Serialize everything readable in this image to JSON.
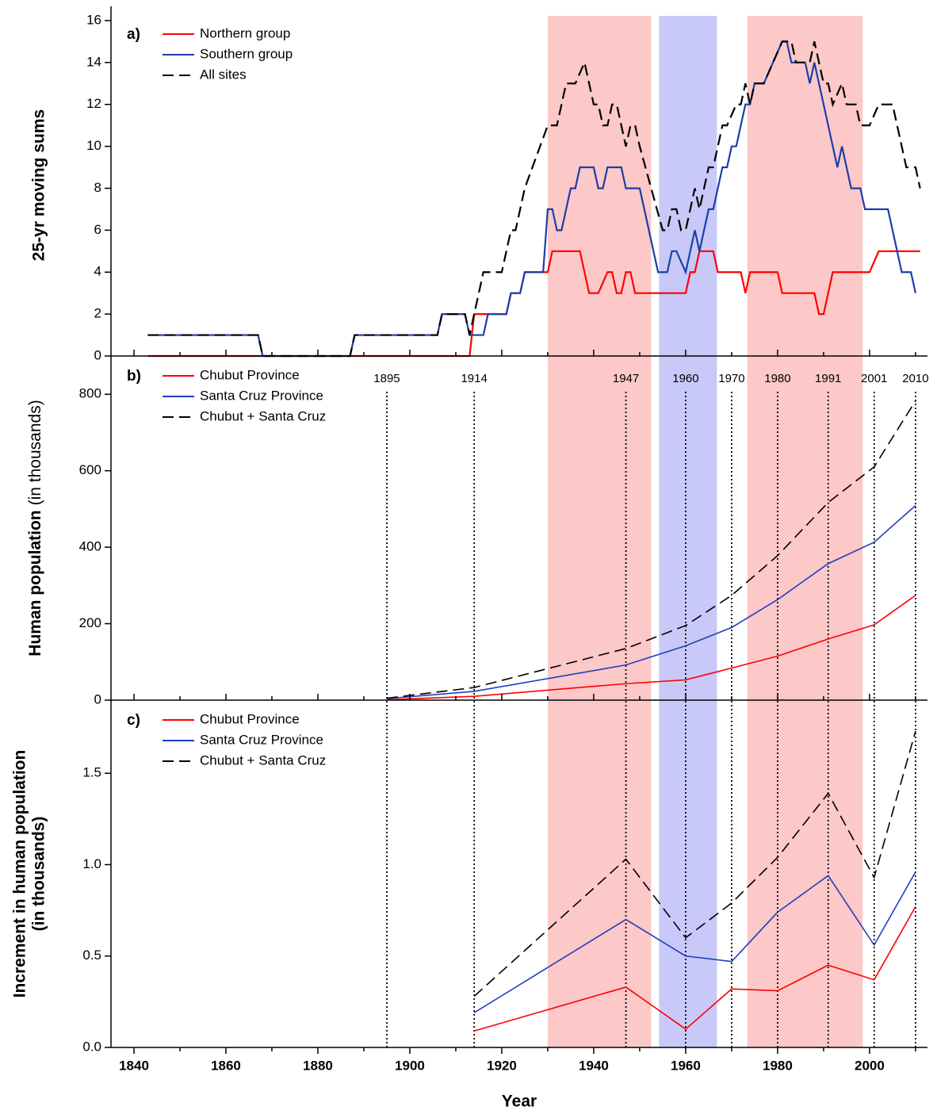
{
  "chart_data": [
    {
      "type": "line",
      "panel_label": "a)",
      "ylabel": "25-yr moving sums",
      "xlim": [
        1835,
        2012.6
      ],
      "ylim": [
        0,
        16.3
      ],
      "yticks": [
        0,
        2,
        4,
        6,
        8,
        10,
        12,
        14,
        16
      ],
      "legend": "upper left",
      "series": [
        {
          "name": "Northern group",
          "color": "#ff0000",
          "style": "solid",
          "x": [
            1843,
            1913,
            1914,
            1921,
            1922,
            1924,
            1925,
            1930,
            1931,
            1937,
            1939,
            1941,
            1943,
            1944,
            1945,
            1946,
            1947,
            1948,
            1949,
            1960,
            1961,
            1962,
            1963,
            1966,
            1967,
            1972,
            1973,
            1974,
            1980,
            1981,
            1988,
            1989,
            1990,
            1991,
            1992,
            2000,
            2002,
            2011
          ],
          "values": [
            0,
            0,
            2,
            2,
            3,
            3,
            4,
            4,
            5,
            5,
            3,
            3,
            4,
            4,
            3,
            3,
            4,
            4,
            3,
            3,
            4,
            4,
            5,
            5,
            4,
            4,
            3,
            4,
            4,
            3,
            3,
            2,
            2,
            3,
            4,
            4,
            5,
            5
          ]
        },
        {
          "name": "Southern group",
          "color": "#1a3fa8",
          "style": "solid",
          "x": [
            1843,
            1867,
            1868,
            1887,
            1888,
            1906,
            1907,
            1912,
            1913,
            1916,
            1917,
            1921,
            1922,
            1924,
            1925,
            1929,
            1930,
            1931,
            1932,
            1933,
            1935,
            1936,
            1937,
            1940,
            1941,
            1942,
            1943,
            1946,
            1947,
            1950,
            1954,
            1956,
            1957,
            1958,
            1960,
            1962,
            1963,
            1965,
            1966,
            1968,
            1969,
            1970,
            1971,
            1972,
            1973,
            1974,
            1975,
            1977,
            1979,
            1981,
            1982,
            1983,
            1986,
            1987,
            1988,
            1990,
            1993,
            1994,
            1995,
            1996,
            1998,
            1999,
            2004,
            2007,
            2009,
            2010
          ],
          "values": [
            1,
            1,
            0,
            0,
            1,
            1,
            2,
            2,
            1,
            1,
            2,
            2,
            3,
            3,
            4,
            4,
            7,
            7,
            6,
            6,
            8,
            8,
            9,
            9,
            8,
            8,
            9,
            9,
            8,
            8,
            4,
            4,
            5,
            5,
            4,
            6,
            5,
            7,
            7,
            9,
            9,
            10,
            10,
            11,
            12,
            12,
            13,
            13,
            14,
            15,
            15,
            14,
            14,
            13,
            14,
            12,
            9,
            10,
            9,
            8,
            8,
            7,
            7,
            4,
            4,
            3
          ]
        },
        {
          "name": "All sites",
          "color": "#000000",
          "style": "dashed",
          "x": [
            1843,
            1867,
            1868,
            1887,
            1888,
            1906,
            1907,
            1912,
            1913,
            1915,
            1916,
            1920,
            1922,
            1923,
            1925,
            1930,
            1932,
            1934,
            1936,
            1938,
            1940,
            1941,
            1942,
            1943,
            1944,
            1945,
            1946,
            1947,
            1948,
            1949,
            1950,
            1955,
            1956,
            1957,
            1958,
            1959,
            1960,
            1962,
            1963,
            1964,
            1965,
            1966,
            1968,
            1969,
            1971,
            1972,
            1973,
            1974,
            1975,
            1977,
            1979,
            1981,
            1983,
            1984,
            1987,
            1988,
            1989,
            1990,
            1991,
            1992,
            1994,
            1995,
            1997,
            1998,
            2000,
            2002,
            2005,
            2008,
            2010,
            2011
          ],
          "values": [
            1,
            1,
            0,
            0,
            1,
            1,
            2,
            2,
            1,
            3,
            4,
            4,
            6,
            6,
            8,
            11,
            11,
            13,
            13,
            14,
            12,
            12,
            11,
            11,
            12,
            12,
            11,
            10,
            11,
            11,
            10,
            6,
            6,
            7,
            7,
            6,
            6,
            8,
            7,
            8,
            9,
            9,
            11,
            11,
            12,
            12,
            13,
            12,
            13,
            13,
            14,
            15,
            15,
            14,
            14,
            15,
            14,
            13,
            13,
            12,
            13,
            12,
            12,
            11,
            11,
            12,
            12,
            9,
            9,
            8
          ]
        }
      ]
    },
    {
      "type": "line",
      "panel_label": "b)",
      "ylabel": "Human population",
      "ylabel_note": "(in thousands)",
      "xlim": [
        1835,
        2012.6
      ],
      "ylim": [
        0,
        900
      ],
      "yticks": [
        0,
        200,
        400,
        600,
        800
      ],
      "legend": "upper left",
      "x": [
        1895,
        1914,
        1947,
        1960,
        1970,
        1980,
        1991,
        2001,
        2010
      ],
      "series": [
        {
          "name": "Chubut Province",
          "color": "#ff0000",
          "style": "solid",
          "values": [
            1,
            10,
            43,
            53,
            84,
            115,
            160,
            197,
            274
          ]
        },
        {
          "name": "Santa Cruz Province",
          "color": "#1f3fbf",
          "style": "solid",
          "values": [
            4,
            23,
            92,
            142,
            190,
            263,
            357,
            413,
            509
          ]
        },
        {
          "name": "Chubut + Santa Cruz",
          "color": "#000000",
          "style": "dashed",
          "values": [
            5,
            33,
            135,
            195,
            274,
            378,
            517,
            610,
            783
          ]
        }
      ]
    },
    {
      "type": "line",
      "panel_label": "c)",
      "ylabel": "Increment in human population",
      "ylabel_note": "(in thousands)",
      "xlabel": "Year",
      "xlim": [
        1835,
        2012.6
      ],
      "ylim": [
        0,
        1.9
      ],
      "yticks": [
        {
          "value": 0,
          "label": "0.0"
        },
        {
          "value": 0.5,
          "label": "0.5"
        },
        {
          "value": 1,
          "label": "1.0"
        },
        {
          "value": 1.5,
          "label": "1.5"
        }
      ],
      "xticks": [
        1840,
        1860,
        1880,
        1900,
        1920,
        1940,
        1960,
        1980,
        2000
      ],
      "x_minor_ticks": [
        1850,
        1870,
        1890,
        1910,
        1930,
        1950,
        1970,
        1990,
        2010
      ],
      "legend": "upper left",
      "x": [
        1914,
        1947,
        1960,
        1970,
        1980,
        1991,
        2001,
        2010
      ],
      "series": [
        {
          "name": "Chubut Province",
          "color": "#ff0000",
          "style": "solid",
          "values": [
            0.09,
            0.33,
            0.1,
            0.32,
            0.31,
            0.45,
            0.37,
            0.77
          ]
        },
        {
          "name": "Santa Cruz Province",
          "color": "#1f3fbf",
          "style": "solid",
          "values": [
            0.19,
            0.7,
            0.5,
            0.47,
            0.74,
            0.94,
            0.56,
            0.96
          ]
        },
        {
          "name": "Chubut + Santa Cruz",
          "color": "#000000",
          "style": "dashed",
          "values": [
            0.28,
            1.03,
            0.6,
            0.79,
            1.04,
            1.39,
            0.93,
            1.73
          ]
        }
      ]
    }
  ],
  "shaded_periods": [
    {
      "start": 1930,
      "end": 1952.5,
      "color": "#fcc8c8"
    },
    {
      "start": 1954.2,
      "end": 1966.8,
      "color": "#c8c9f8"
    },
    {
      "start": 1973.4,
      "end": 1998.5,
      "color": "#fcc8c8"
    }
  ]
}
